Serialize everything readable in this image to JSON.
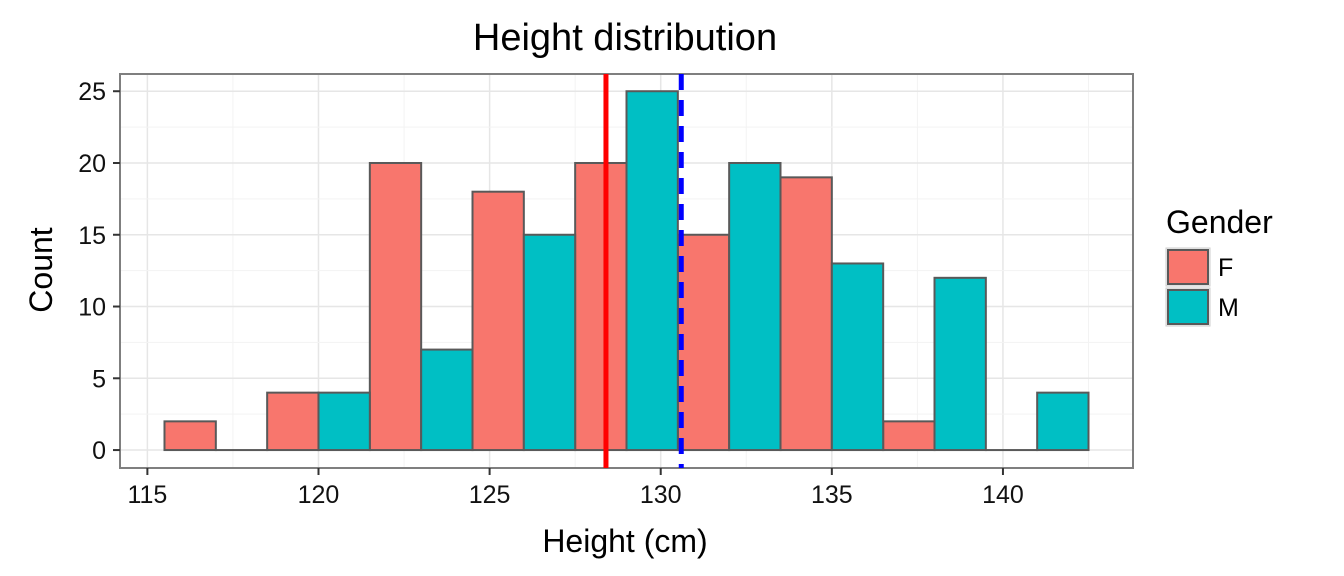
{
  "chart_data": {
    "type": "bar",
    "title": "Height distribution",
    "xlabel": "Height (cm)",
    "ylabel": "Count",
    "xlim": [
      114.2,
      143.8
    ],
    "ylim": [
      -1.25,
      26.2
    ],
    "x_ticks": [
      115,
      120,
      125,
      130,
      135,
      140
    ],
    "y_ticks": [
      0,
      5,
      10,
      15,
      20,
      25
    ],
    "grid": true,
    "legend_position": "right",
    "legend_title": "Gender",
    "bin_width": 3,
    "series": [
      {
        "name": "F",
        "color": "#F8766D",
        "bins": [
          {
            "x_start": 115.5,
            "count": 2
          },
          {
            "x_start": 118.5,
            "count": 4
          },
          {
            "x_start": 121.5,
            "count": 20
          },
          {
            "x_start": 124.5,
            "count": 18
          },
          {
            "x_start": 127.5,
            "count": 20
          },
          {
            "x_start": 130.5,
            "count": 15
          },
          {
            "x_start": 133.5,
            "count": 19
          },
          {
            "x_start": 136.5,
            "count": 2
          },
          {
            "x_start": 139.5,
            "count": 0
          }
        ]
      },
      {
        "name": "M",
        "color": "#00BFC4",
        "bins": [
          {
            "x_start": 117.0,
            "count": 0
          },
          {
            "x_start": 120.0,
            "count": 4
          },
          {
            "x_start": 123.0,
            "count": 7
          },
          {
            "x_start": 126.0,
            "count": 15
          },
          {
            "x_start": 129.0,
            "count": 25
          },
          {
            "x_start": 132.0,
            "count": 20
          },
          {
            "x_start": 135.0,
            "count": 13
          },
          {
            "x_start": 138.0,
            "count": 12
          },
          {
            "x_start": 141.0,
            "count": 4
          }
        ]
      }
    ],
    "reference_lines": [
      {
        "x": 128.4,
        "color": "#FF0000",
        "style": "solid"
      },
      {
        "x": 130.6,
        "color": "#0000FF",
        "style": "dashed"
      }
    ]
  }
}
